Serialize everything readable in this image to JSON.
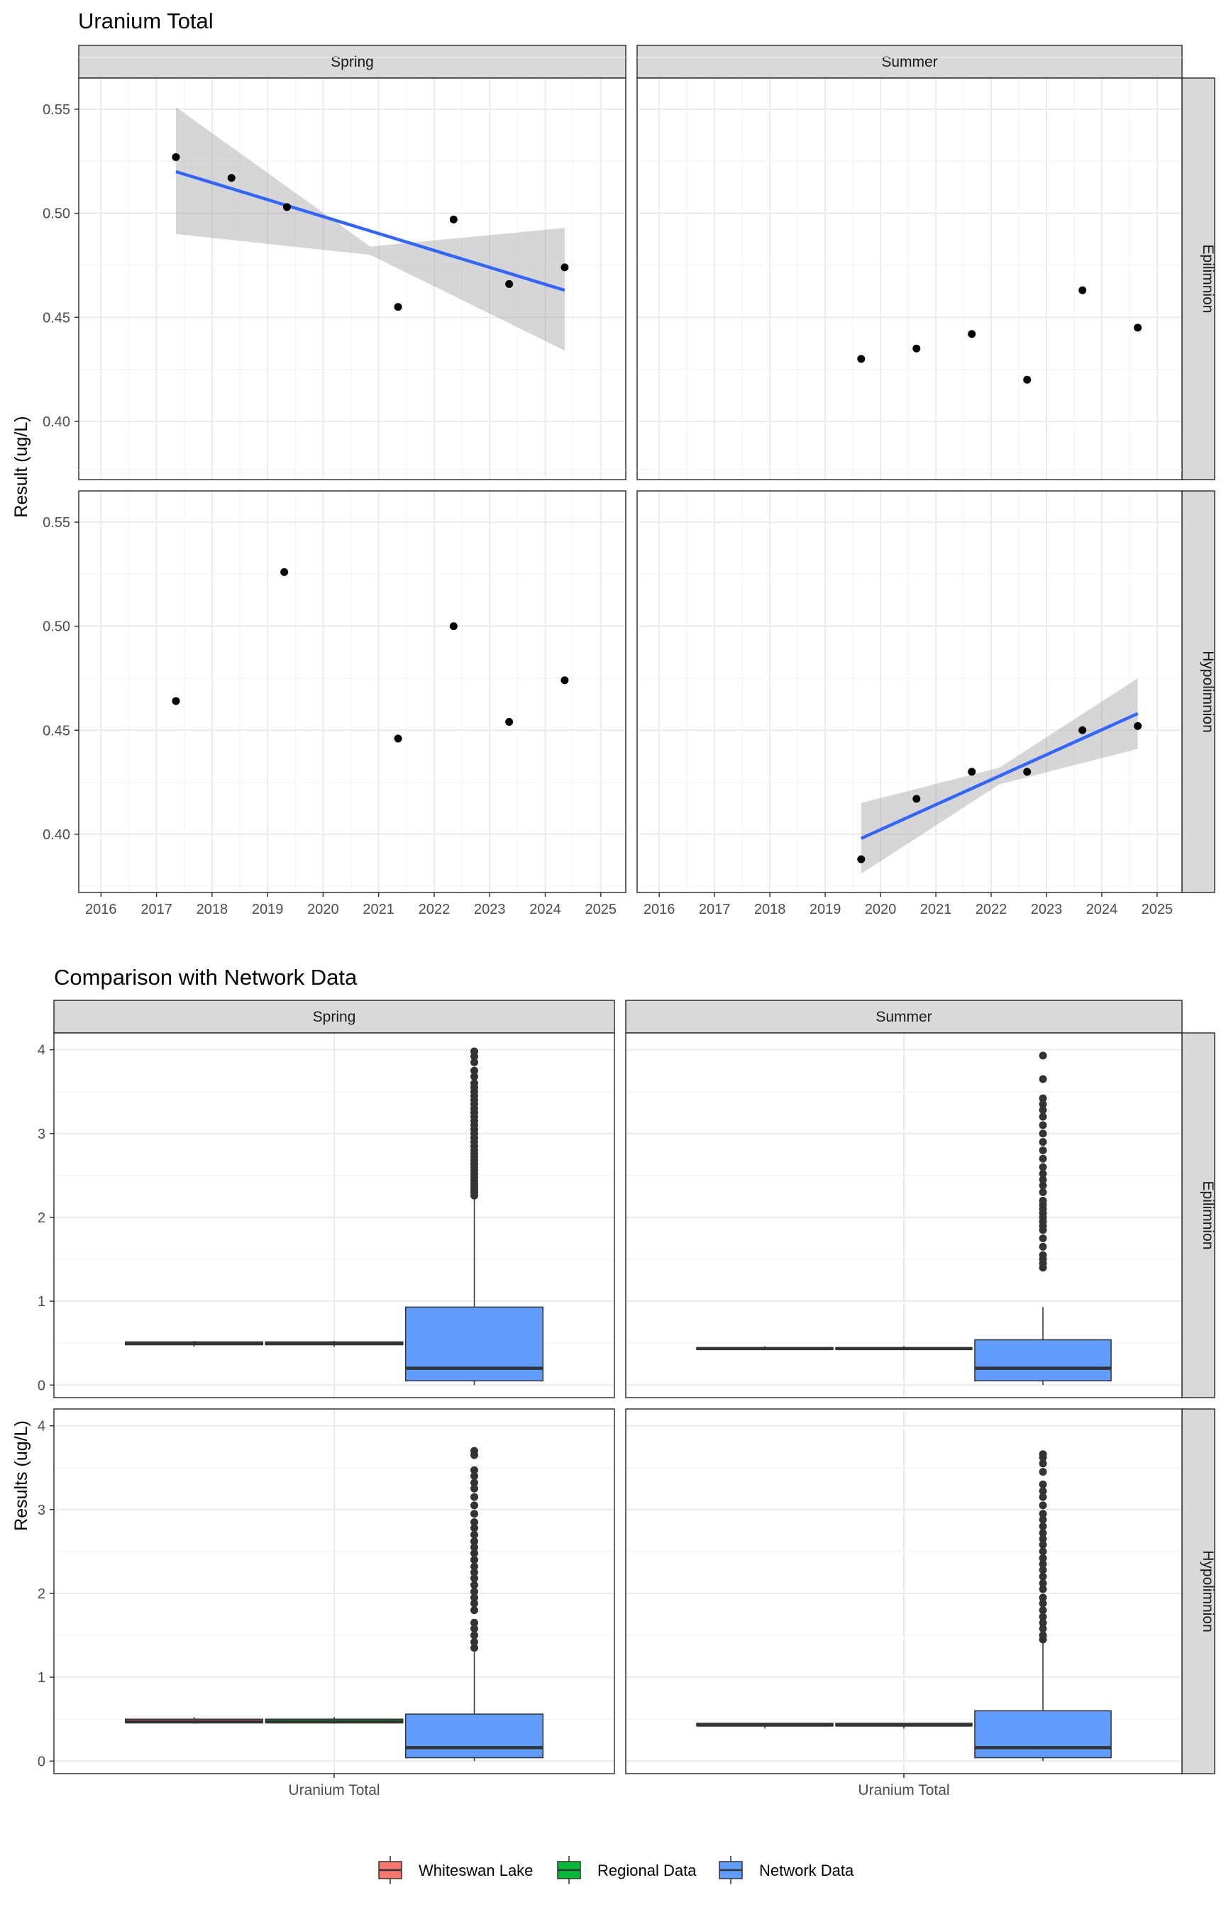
{
  "chart_data": [
    {
      "type": "scatter",
      "title": "Uranium Total",
      "xlabel": "",
      "ylabel": "Result (ug/L)",
      "xlim": [
        2015.6,
        2025.45
      ],
      "ylim": [
        0.372,
        0.565
      ],
      "x_ticks": [
        2016,
        2017,
        2018,
        2019,
        2020,
        2021,
        2022,
        2023,
        2024,
        2025
      ],
      "y_ticks": [
        0.4,
        0.45,
        0.5,
        0.55
      ],
      "y_tick_labels": [
        "0.40",
        "0.45",
        "0.50",
        "0.55"
      ],
      "columns": [
        "Spring",
        "Summer"
      ],
      "rows": [
        "Epilimnion",
        "Hypolimnion"
      ],
      "grid": true,
      "panels": [
        {
          "column": "Spring",
          "row": "Epilimnion",
          "points": [
            [
              2017.35,
              0.527
            ],
            [
              2018.35,
              0.517
            ],
            [
              2019.35,
              0.503
            ],
            [
              2021.35,
              0.455
            ],
            [
              2022.35,
              0.497
            ],
            [
              2023.35,
              0.466
            ],
            [
              2024.35,
              0.474
            ]
          ],
          "trend": {
            "x": [
              2017.35,
              2024.35
            ],
            "y": [
              0.52,
              0.463
            ],
            "ci_lower": [
              0.49,
              0.48,
              0.434
            ],
            "ci_upper": [
              0.551,
              0.484,
              0.493
            ],
            "ci_x": [
              2017.35,
              2020.85,
              2024.35
            ]
          }
        },
        {
          "column": "Summer",
          "row": "Epilimnion",
          "points": [
            [
              2019.65,
              0.43
            ],
            [
              2020.65,
              0.435
            ],
            [
              2021.65,
              0.442
            ],
            [
              2022.65,
              0.42
            ],
            [
              2023.65,
              0.463
            ],
            [
              2024.65,
              0.445
            ]
          ]
        },
        {
          "column": "Spring",
          "row": "Hypolimnion",
          "points": [
            [
              2017.35,
              0.464
            ],
            [
              2019.3,
              0.526
            ],
            [
              2021.35,
              0.446
            ],
            [
              2022.35,
              0.5
            ],
            [
              2023.35,
              0.454
            ],
            [
              2024.35,
              0.474
            ]
          ]
        },
        {
          "column": "Summer",
          "row": "Hypolimnion",
          "points": [
            [
              2019.65,
              0.388
            ],
            [
              2020.65,
              0.417
            ],
            [
              2021.65,
              0.43
            ],
            [
              2022.65,
              0.43
            ],
            [
              2023.65,
              0.45
            ],
            [
              2024.65,
              0.452
            ]
          ],
          "trend": {
            "x": [
              2019.65,
              2024.65
            ],
            "y": [
              0.398,
              0.458
            ],
            "ci_lower": [
              0.381,
              0.424,
              0.441
            ],
            "ci_upper": [
              0.415,
              0.432,
              0.475
            ],
            "ci_x": [
              2019.65,
              2022.15,
              2024.65
            ]
          }
        }
      ]
    },
    {
      "type": "box",
      "title": "Comparison with Network Data",
      "xlabel": "",
      "ylabel": "Results (ug/L)",
      "ylim": [
        -0.15,
        4.2
      ],
      "y_ticks": [
        0,
        1,
        2,
        3,
        4
      ],
      "categories": [
        "Uranium Total"
      ],
      "columns": [
        "Spring",
        "Summer"
      ],
      "rows": [
        "Epilimnion",
        "Hypolimnion"
      ],
      "grid": true,
      "legend": {
        "position": "bottom",
        "entries": [
          {
            "name": "Whiteswan Lake",
            "color": "#F8766D"
          },
          {
            "name": "Regional Data",
            "color": "#00BA38"
          },
          {
            "name": "Network Data",
            "color": "#619CFF"
          }
        ]
      },
      "panels": [
        {
          "column": "Spring",
          "row": "Epilimnion",
          "boxes": [
            {
              "group": "Whiteswan Lake",
              "q1": 0.48,
              "median": 0.5,
              "q3": 0.515,
              "whisker_low": 0.455,
              "whisker_high": 0.527
            },
            {
              "group": "Regional Data",
              "q1": 0.48,
              "median": 0.5,
              "q3": 0.515,
              "whisker_low": 0.455,
              "whisker_high": 0.527
            },
            {
              "group": "Network Data",
              "q1": 0.05,
              "median": 0.2,
              "q3": 0.93,
              "whisker_low": 0.0,
              "whisker_high": 2.25,
              "outliers": [
                2.26,
                2.3,
                2.33,
                2.36,
                2.4,
                2.44,
                2.48,
                2.52,
                2.56,
                2.6,
                2.64,
                2.68,
                2.72,
                2.76,
                2.8,
                2.85,
                2.9,
                2.95,
                3.0,
                3.05,
                3.1,
                3.15,
                3.2,
                3.25,
                3.3,
                3.35,
                3.4,
                3.45,
                3.5,
                3.55,
                3.6,
                3.68,
                3.75,
                3.85,
                3.92,
                3.98
              ]
            }
          ]
        },
        {
          "column": "Summer",
          "row": "Epilimnion",
          "boxes": [
            {
              "group": "Whiteswan Lake",
              "q1": 0.425,
              "median": 0.435,
              "q3": 0.445,
              "whisker_low": 0.42,
              "whisker_high": 0.463
            },
            {
              "group": "Regional Data",
              "q1": 0.425,
              "median": 0.435,
              "q3": 0.445,
              "whisker_low": 0.42,
              "whisker_high": 0.463
            },
            {
              "group": "Network Data",
              "q1": 0.05,
              "median": 0.2,
              "q3": 0.54,
              "whisker_low": 0.0,
              "whisker_high": 0.93,
              "outliers": [
                1.4,
                1.45,
                1.5,
                1.55,
                1.65,
                1.75,
                1.85,
                1.9,
                1.95,
                2.0,
                2.05,
                2.1,
                2.15,
                2.2,
                2.3,
                2.38,
                2.45,
                2.52,
                2.6,
                2.7,
                2.8,
                2.9,
                3.0,
                3.1,
                3.2,
                3.28,
                3.35,
                3.42,
                3.65,
                3.93
              ]
            }
          ]
        },
        {
          "column": "Spring",
          "row": "Hypolimnion",
          "boxes": [
            {
              "group": "Whiteswan Lake",
              "q1": 0.455,
              "median": 0.469,
              "q3": 0.5,
              "whisker_low": 0.446,
              "whisker_high": 0.526
            },
            {
              "group": "Regional Data",
              "q1": 0.455,
              "median": 0.469,
              "q3": 0.5,
              "whisker_low": 0.446,
              "whisker_high": 0.526
            },
            {
              "group": "Network Data",
              "q1": 0.04,
              "median": 0.16,
              "q3": 0.56,
              "whisker_low": 0.0,
              "whisker_high": 1.3,
              "outliers": [
                1.35,
                1.42,
                1.5,
                1.58,
                1.65,
                1.8,
                1.88,
                1.95,
                2.02,
                2.1,
                2.18,
                2.25,
                2.32,
                2.4,
                2.48,
                2.55,
                2.62,
                2.7,
                2.78,
                2.85,
                2.95,
                3.05,
                3.15,
                3.25,
                3.32,
                3.4,
                3.47,
                3.65,
                3.7
              ]
            }
          ]
        },
        {
          "column": "Summer",
          "row": "Hypolimnion",
          "boxes": [
            {
              "group": "Whiteswan Lake",
              "q1": 0.42,
              "median": 0.43,
              "q3": 0.45,
              "whisker_low": 0.388,
              "whisker_high": 0.452
            },
            {
              "group": "Regional Data",
              "q1": 0.42,
              "median": 0.43,
              "q3": 0.45,
              "whisker_low": 0.388,
              "whisker_high": 0.452
            },
            {
              "group": "Network Data",
              "q1": 0.04,
              "median": 0.16,
              "q3": 0.6,
              "whisker_low": 0.0,
              "whisker_high": 1.43,
              "outliers": [
                1.45,
                1.5,
                1.58,
                1.65,
                1.72,
                1.8,
                1.88,
                1.95,
                2.05,
                2.12,
                2.2,
                2.28,
                2.35,
                2.42,
                2.5,
                2.58,
                2.65,
                2.72,
                2.8,
                2.88,
                2.95,
                3.05,
                3.15,
                3.22,
                3.3,
                3.45,
                3.55,
                3.62,
                3.66
              ]
            }
          ]
        }
      ]
    }
  ]
}
